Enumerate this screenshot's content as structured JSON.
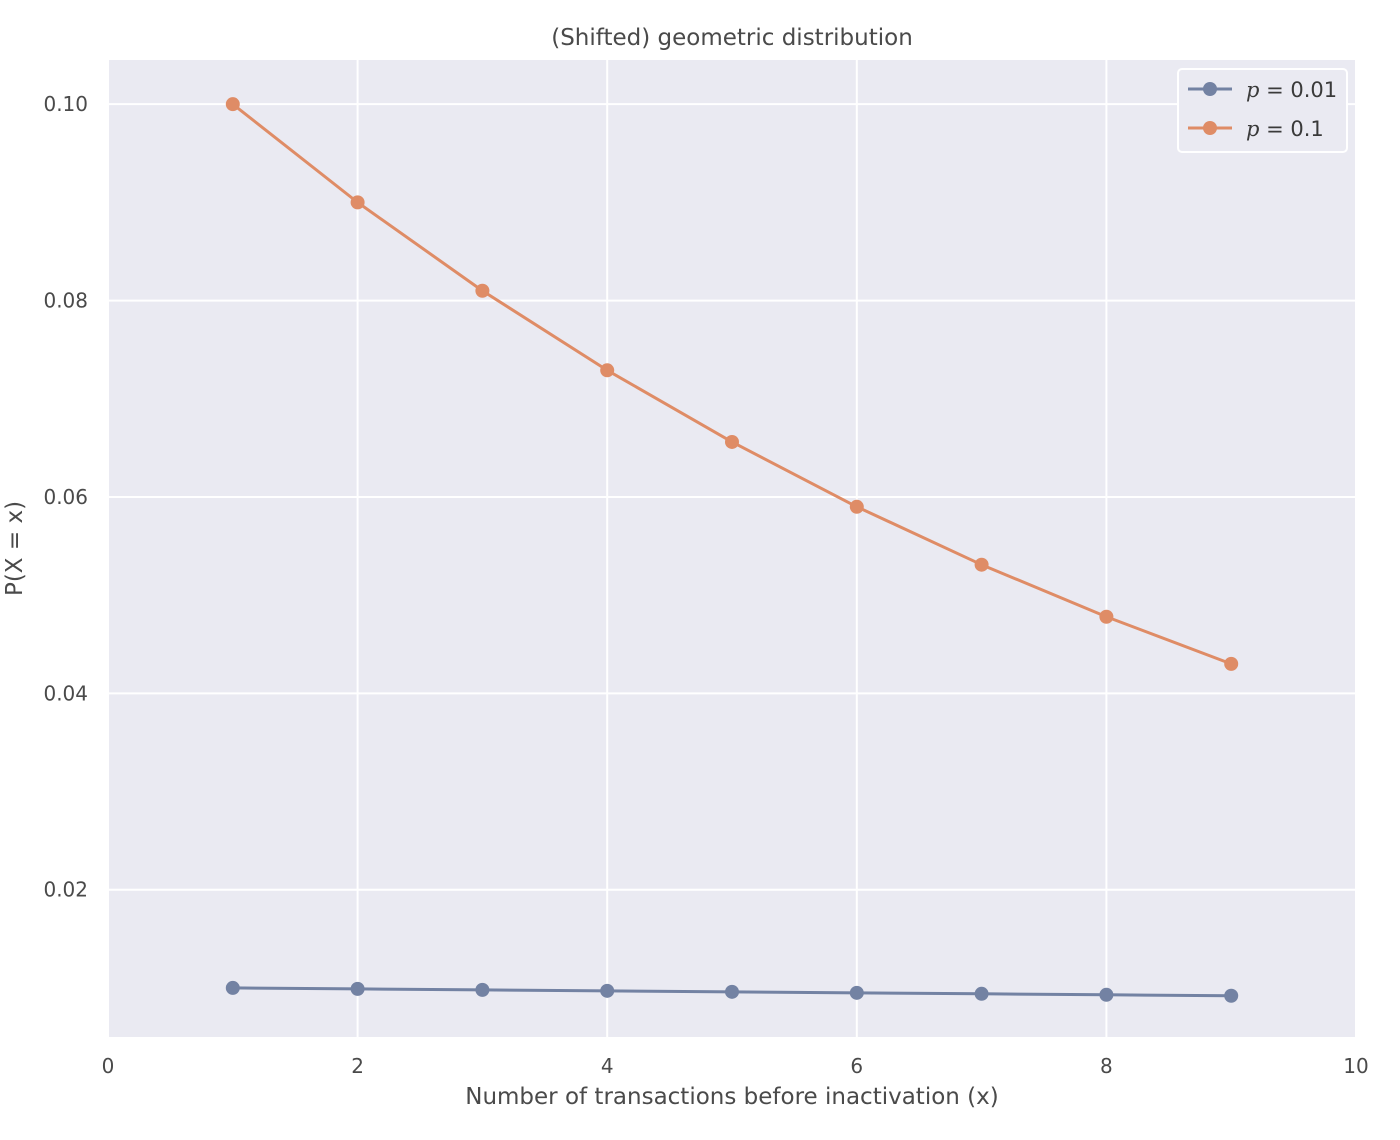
{
  "chart_data": {
    "type": "line",
    "title": "(Shifted) geometric distribution",
    "xlabel": "Number of transactions before inactivation (x)",
    "ylabel": "P(X = x)",
    "xlim": [
      0,
      10
    ],
    "ylim": [
      0.005,
      0.1045
    ],
    "xticks": [
      0,
      2,
      4,
      6,
      8,
      10
    ],
    "xtick_labels": [
      "0",
      "2",
      "4",
      "6",
      "8",
      "10"
    ],
    "yticks": [
      0.02,
      0.04,
      0.06,
      0.08,
      0.1
    ],
    "ytick_labels": [
      "0.02",
      "0.04",
      "0.06",
      "0.08",
      "0.10"
    ],
    "grid": true,
    "legend_position": "top-right",
    "x": [
      1,
      2,
      3,
      4,
      5,
      6,
      7,
      8,
      9
    ],
    "series": [
      {
        "name": "p = 0.01",
        "legend_var": "p",
        "legend_rest": " = 0.01",
        "color": "#7382a3",
        "values": [
          0.01,
          0.0099,
          0.0098,
          0.0097,
          0.0096,
          0.0095,
          0.0094,
          0.0093,
          0.0092
        ]
      },
      {
        "name": "p = 0.1",
        "legend_var": "p",
        "legend_rest": " = 0.1",
        "color": "#df8c66",
        "values": [
          0.1,
          0.09,
          0.081,
          0.0729,
          0.0656,
          0.059,
          0.0531,
          0.0478,
          0.043
        ]
      }
    ],
    "colors": {
      "plot_background": "#eaeaf2",
      "grid": "#ffffff",
      "text": "#4a4a4a"
    }
  }
}
